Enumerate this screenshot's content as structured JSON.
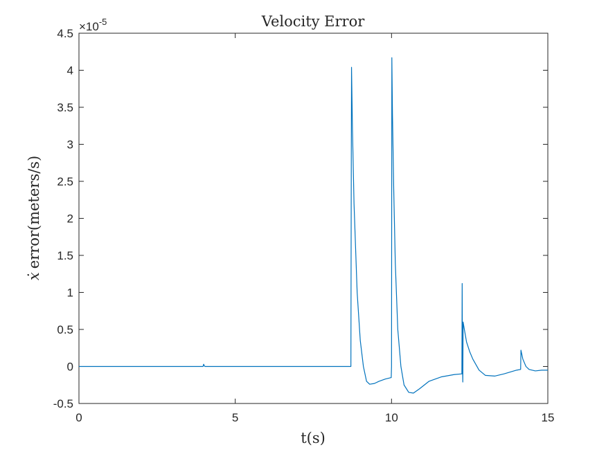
{
  "chart_data": {
    "type": "line",
    "title": "Velocity Error",
    "xlabel": "t(s)",
    "ylabel_symbol": "ẋ",
    "ylabel": "error(meters/s)",
    "y_exponent_label": "×10",
    "y_exponent": "-5",
    "xlim": [
      0,
      15
    ],
    "ylim": [
      -0.5,
      4.5
    ],
    "x_ticks": [
      0,
      5,
      10,
      15
    ],
    "x_tick_labels": [
      "0",
      "5",
      "10",
      "15"
    ],
    "y_ticks": [
      -0.5,
      0,
      0.5,
      1,
      1.5,
      2,
      2.5,
      3,
      3.5,
      4,
      4.5
    ],
    "y_tick_labels": [
      "-0.5",
      "0",
      "0.5",
      "1",
      "1.5",
      "2",
      "2.5",
      "3",
      "3.5",
      "4",
      "4.5"
    ],
    "grid": false,
    "line_color": "#0072BD",
    "series": [
      {
        "x": [
          0,
          3.97,
          3.99,
          4.01,
          4.03,
          8.7,
          8.71,
          8.72,
          8.75,
          8.8,
          8.9,
          9.0,
          9.1,
          9.2,
          9.3,
          9.45,
          9.6,
          9.8,
          9.99,
          10.0,
          10.01,
          10.03,
          10.07,
          10.12,
          10.2,
          10.3,
          10.4,
          10.55,
          10.7,
          10.9,
          11.2,
          11.6,
          12.0,
          12.25,
          12.26,
          12.27,
          12.28,
          12.29,
          12.33,
          12.4,
          12.5,
          12.6,
          12.8,
          13.0,
          13.3,
          13.6,
          14.0,
          14.13,
          14.14,
          14.16,
          14.2,
          14.3,
          14.4,
          14.6,
          14.8,
          15.0
        ],
        "y": [
          0,
          0,
          0.03,
          0.01,
          0,
          0,
          2.2,
          4.04,
          3.2,
          2.2,
          1.0,
          0.35,
          0.0,
          -0.2,
          -0.24,
          -0.23,
          -0.2,
          -0.17,
          -0.15,
          0.0,
          4.17,
          3.4,
          2.4,
          1.4,
          0.5,
          0.0,
          -0.25,
          -0.35,
          -0.36,
          -0.3,
          -0.2,
          -0.14,
          -0.11,
          -0.1,
          1.12,
          0.0,
          -0.21,
          0.6,
          0.5,
          0.33,
          0.2,
          0.1,
          -0.05,
          -0.12,
          -0.13,
          -0.1,
          -0.05,
          -0.04,
          0.22,
          0.18,
          0.1,
          0.0,
          -0.04,
          -0.06,
          -0.05,
          -0.05
        ]
      }
    ]
  }
}
